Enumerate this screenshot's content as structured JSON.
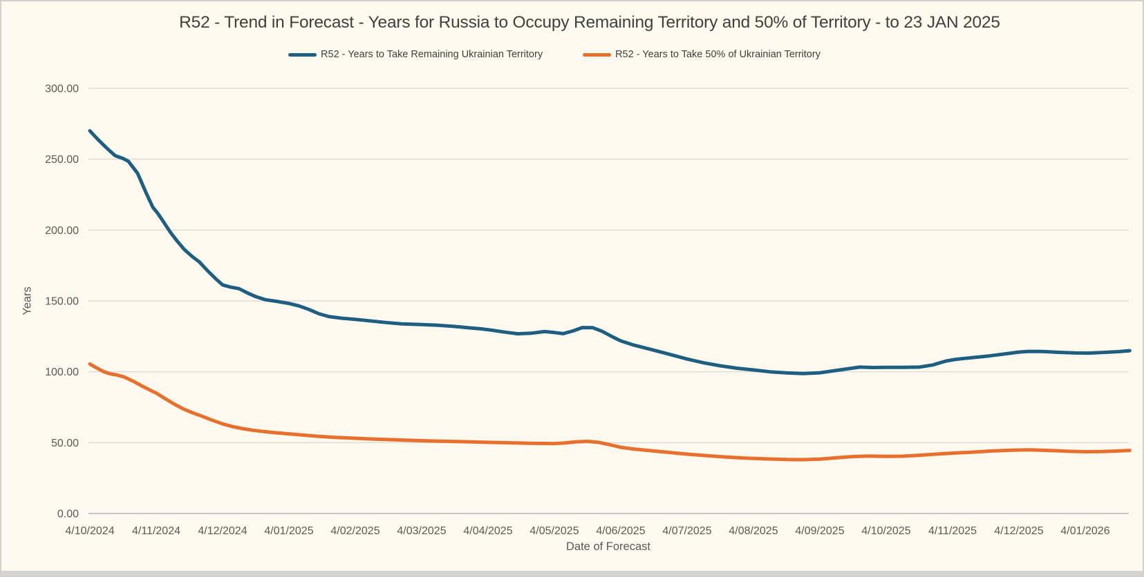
{
  "chart_data": {
    "type": "line",
    "title": "R52 - Trend in Forecast - Years for Russia to Occupy Remaining Territory and 50% of Territory - to 23 JAN 2025",
    "xlabel": "Date of Forecast",
    "ylabel": "Years",
    "plot_bg": "#FEF9EE",
    "grid": true,
    "legend_position": "top",
    "ylim": [
      0,
      300
    ],
    "y_tick_labels": [
      "0.00",
      "50.00",
      "100.00",
      "150.00",
      "200.00",
      "250.00",
      "300.00"
    ],
    "y_tick_values": [
      0,
      50,
      100,
      150,
      200,
      250,
      300
    ],
    "x_tick_labels": [
      "4/10/2024",
      "4/11/2024",
      "4/12/2024",
      "4/01/2025",
      "4/02/2025",
      "4/03/2025",
      "4/04/2025",
      "4/05/2025",
      "4/06/2025",
      "4/07/2025",
      "4/08/2025",
      "4/09/2025",
      "4/10/2025",
      "4/11/2025",
      "4/12/2025",
      "4/01/2026"
    ],
    "x_unit": "months since first tick (fractional, daily forecast series)",
    "xlim_months": [
      0,
      15.67
    ],
    "series": [
      {
        "name": "R52 - Years to Take Remaining Ukrainian Territory",
        "color": "#1E5E80",
        "points": [
          [
            0,
            270
          ],
          [
            0.12,
            264
          ],
          [
            0.25,
            258
          ],
          [
            0.38,
            252.5
          ],
          [
            0.5,
            250.5
          ],
          [
            0.58,
            248.5
          ],
          [
            0.72,
            240
          ],
          [
            0.85,
            226
          ],
          [
            0.95,
            216
          ],
          [
            1.02,
            212
          ],
          [
            1.1,
            206.5
          ],
          [
            1.22,
            198
          ],
          [
            1.32,
            192
          ],
          [
            1.42,
            186.5
          ],
          [
            1.55,
            181
          ],
          [
            1.65,
            177.5
          ],
          [
            1.78,
            171
          ],
          [
            1.9,
            165.5
          ],
          [
            2.0,
            161.3
          ],
          [
            2.12,
            159.8
          ],
          [
            2.25,
            158.6
          ],
          [
            2.38,
            155.5
          ],
          [
            2.5,
            153
          ],
          [
            2.65,
            150.8
          ],
          [
            2.8,
            149.8
          ],
          [
            3.0,
            148.2
          ],
          [
            3.15,
            146.5
          ],
          [
            3.3,
            144
          ],
          [
            3.45,
            141
          ],
          [
            3.6,
            139
          ],
          [
            3.8,
            137.8
          ],
          [
            4.0,
            137
          ],
          [
            4.2,
            136
          ],
          [
            4.45,
            134.8
          ],
          [
            4.7,
            133.8
          ],
          [
            5.0,
            133.3
          ],
          [
            5.25,
            132.8
          ],
          [
            5.5,
            132
          ],
          [
            5.72,
            131
          ],
          [
            5.9,
            130.3
          ],
          [
            6.05,
            129.4
          ],
          [
            6.25,
            128
          ],
          [
            6.45,
            126.8
          ],
          [
            6.65,
            127.2
          ],
          [
            6.85,
            128.4
          ],
          [
            7.0,
            127.7
          ],
          [
            7.13,
            126.9
          ],
          [
            7.28,
            128.8
          ],
          [
            7.42,
            131.2
          ],
          [
            7.58,
            131.1
          ],
          [
            7.72,
            128.5
          ],
          [
            7.87,
            124.8
          ],
          [
            8.0,
            121.8
          ],
          [
            8.2,
            118.8
          ],
          [
            8.45,
            115.8
          ],
          [
            8.7,
            112.8
          ],
          [
            9.0,
            109
          ],
          [
            9.25,
            106.3
          ],
          [
            9.5,
            104.2
          ],
          [
            9.75,
            102.5
          ],
          [
            10.0,
            101.3
          ],
          [
            10.25,
            100
          ],
          [
            10.5,
            99.2
          ],
          [
            10.75,
            98.7
          ],
          [
            11.0,
            99.3
          ],
          [
            11.2,
            100.6
          ],
          [
            11.4,
            102
          ],
          [
            11.6,
            103.3
          ],
          [
            11.8,
            103
          ],
          [
            12.0,
            103.1
          ],
          [
            12.25,
            103.1
          ],
          [
            12.5,
            103.3
          ],
          [
            12.7,
            104.8
          ],
          [
            12.9,
            107.6
          ],
          [
            13.05,
            108.8
          ],
          [
            13.3,
            110
          ],
          [
            13.55,
            111.2
          ],
          [
            13.8,
            112.7
          ],
          [
            14.0,
            113.9
          ],
          [
            14.15,
            114.4
          ],
          [
            14.35,
            114.3
          ],
          [
            14.6,
            113.7
          ],
          [
            14.85,
            113.3
          ],
          [
            15.05,
            113.2
          ],
          [
            15.3,
            113.7
          ],
          [
            15.5,
            114.2
          ],
          [
            15.67,
            114.9
          ]
        ]
      },
      {
        "name": "R52 - Years to Take  50% of Ukrainian Territory",
        "color": "#E8702E",
        "points": [
          [
            0,
            105.5
          ],
          [
            0.1,
            102.8
          ],
          [
            0.2,
            100.3
          ],
          [
            0.3,
            98.6
          ],
          [
            0.42,
            97.6
          ],
          [
            0.52,
            96.3
          ],
          [
            0.65,
            93.4
          ],
          [
            0.8,
            89.6
          ],
          [
            0.92,
            86.8
          ],
          [
            1.0,
            85
          ],
          [
            1.12,
            81.5
          ],
          [
            1.25,
            77.8
          ],
          [
            1.4,
            74
          ],
          [
            1.55,
            71
          ],
          [
            1.68,
            68.8
          ],
          [
            1.82,
            66.3
          ],
          [
            2.0,
            63.2
          ],
          [
            2.15,
            61.3
          ],
          [
            2.3,
            59.9
          ],
          [
            2.45,
            58.8
          ],
          [
            2.62,
            57.8
          ],
          [
            2.8,
            57
          ],
          [
            3.0,
            56.2
          ],
          [
            3.2,
            55.4
          ],
          [
            3.45,
            54.4
          ],
          [
            3.7,
            53.7
          ],
          [
            4.0,
            53.1
          ],
          [
            4.3,
            52.5
          ],
          [
            4.6,
            52
          ],
          [
            5.0,
            51.4
          ],
          [
            5.3,
            51
          ],
          [
            5.6,
            50.7
          ],
          [
            6.0,
            50.2
          ],
          [
            6.3,
            49.9
          ],
          [
            6.6,
            49.6
          ],
          [
            7.0,
            49.4
          ],
          [
            7.15,
            49.7
          ],
          [
            7.33,
            50.6
          ],
          [
            7.5,
            50.9
          ],
          [
            7.65,
            50.3
          ],
          [
            7.8,
            48.9
          ],
          [
            8.0,
            46.7
          ],
          [
            8.2,
            45.5
          ],
          [
            8.45,
            44.3
          ],
          [
            8.7,
            43.2
          ],
          [
            9.0,
            41.9
          ],
          [
            9.3,
            40.8
          ],
          [
            9.6,
            39.8
          ],
          [
            9.9,
            39
          ],
          [
            10.2,
            38.5
          ],
          [
            10.5,
            38.1
          ],
          [
            10.75,
            38
          ],
          [
            11.0,
            38.4
          ],
          [
            11.25,
            39.3
          ],
          [
            11.5,
            40.2
          ],
          [
            11.75,
            40.5
          ],
          [
            12.0,
            40.3
          ],
          [
            12.25,
            40.4
          ],
          [
            12.5,
            41.1
          ],
          [
            12.75,
            41.9
          ],
          [
            13.0,
            42.6
          ],
          [
            13.3,
            43.3
          ],
          [
            13.6,
            44.1
          ],
          [
            13.9,
            44.7
          ],
          [
            14.15,
            44.9
          ],
          [
            14.45,
            44.5
          ],
          [
            14.75,
            43.9
          ],
          [
            15.0,
            43.6
          ],
          [
            15.25,
            43.7
          ],
          [
            15.5,
            44.1
          ],
          [
            15.67,
            44.5
          ]
        ]
      }
    ]
  }
}
